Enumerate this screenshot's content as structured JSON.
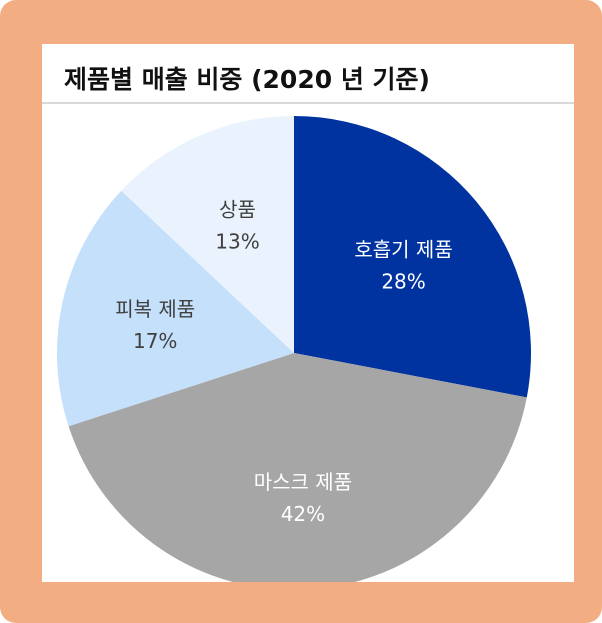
{
  "chart_data": {
    "type": "pie",
    "title": "제품별 매출 비중 (2020 년 기준)",
    "slices": [
      {
        "label": "호흡기 제품",
        "value": 28,
        "display": "28%",
        "color": "#0033a0",
        "text_color": "#ffffff"
      },
      {
        "label": "마스크 제품",
        "value": 42,
        "display": "42%",
        "color": "#a6a6a6",
        "text_color": "#ffffff"
      },
      {
        "label": "피복 제품",
        "value": 17,
        "display": "17%",
        "color": "#c5e0fb",
        "text_color": "#404040"
      },
      {
        "label": "상품",
        "value": 13,
        "display": "13%",
        "color": "#eaf3fd",
        "text_color": "#404040"
      }
    ]
  }
}
